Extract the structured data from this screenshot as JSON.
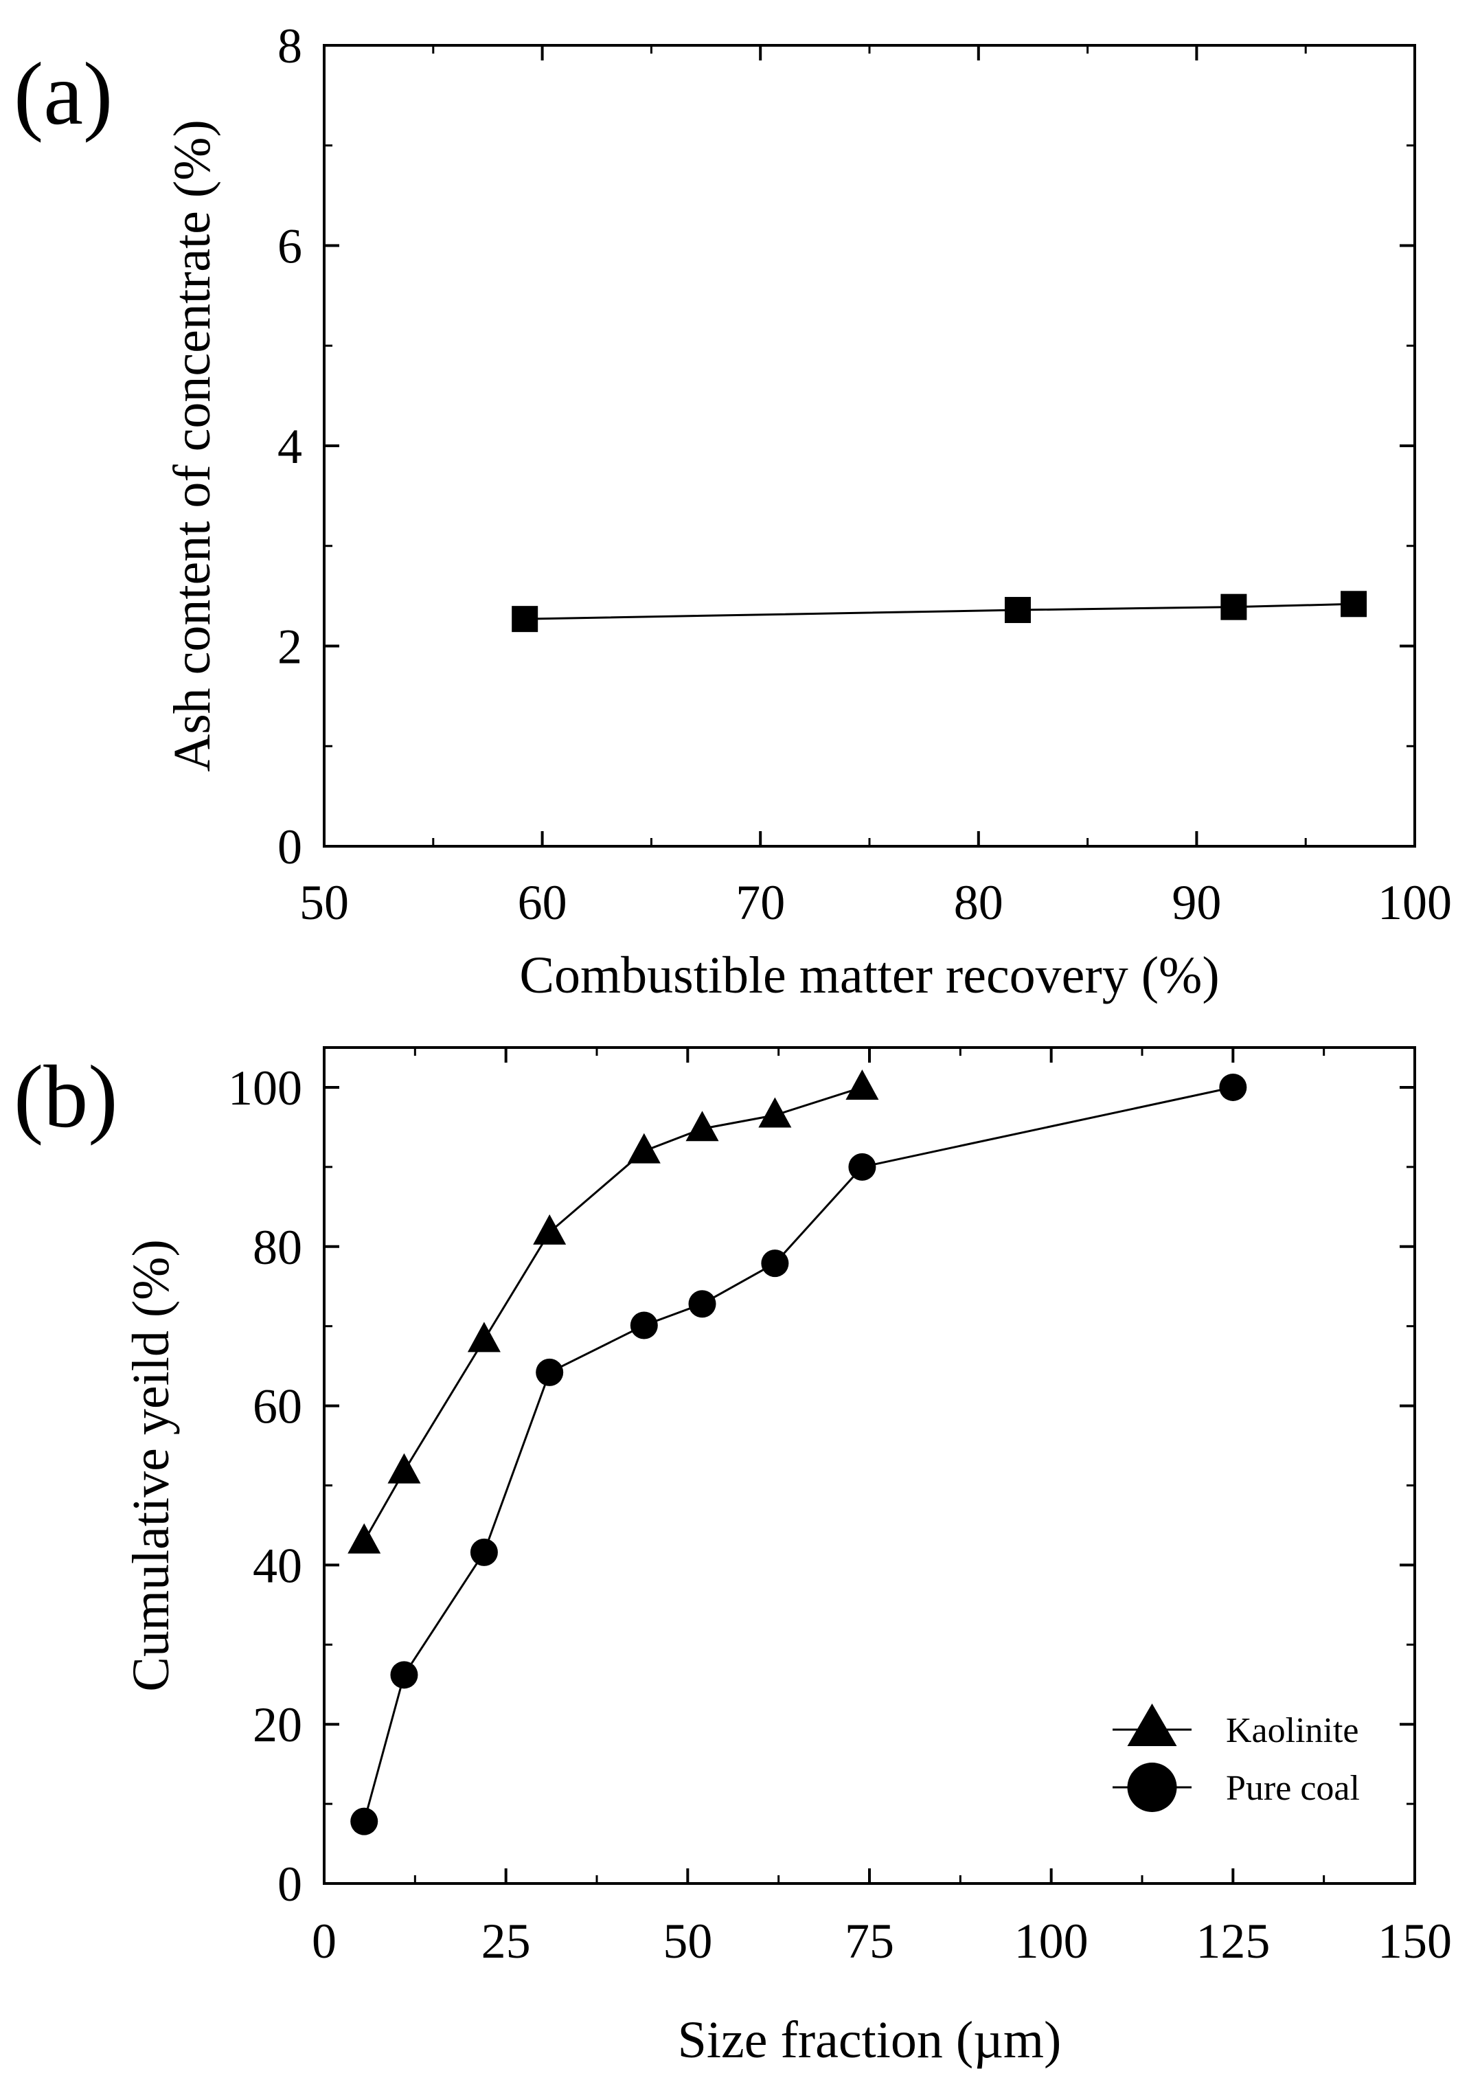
{
  "chart_data": [
    {
      "panel_label": "(a)",
      "type": "line",
      "xlabel": "Combustible matter recovery (%)",
      "ylabel": "Ash content of concentrate (%)",
      "xlim": [
        50,
        100
      ],
      "ylim": [
        0,
        8
      ],
      "xticks": [
        50,
        60,
        70,
        80,
        90,
        100
      ],
      "yticks": [
        0,
        2,
        4,
        6,
        8
      ],
      "grid": false,
      "series": [
        {
          "marker": "square",
          "x": [
            59.2,
            81.8,
            91.7,
            97.2
          ],
          "y": [
            2.27,
            2.36,
            2.39,
            2.42
          ]
        }
      ]
    },
    {
      "panel_label": "(b)",
      "type": "line",
      "xlabel": "Size fraction (µm)",
      "ylabel": "Cumulative yeild (%)",
      "xlim": [
        0,
        150
      ],
      "ylim": [
        0,
        105
      ],
      "xticks": [
        0,
        25,
        50,
        75,
        100,
        125,
        150
      ],
      "yticks": [
        0,
        20,
        40,
        60,
        80,
        100
      ],
      "grid": false,
      "legend_position": "bottom-right",
      "series": [
        {
          "name": "Kaolinite",
          "marker": "triangle",
          "x": [
            5.5,
            11,
            22,
            31,
            44,
            52,
            62,
            74
          ],
          "y": [
            43,
            51.8,
            68.3,
            81.8,
            92,
            94.8,
            96.5,
            100
          ]
        },
        {
          "name": "Pure coal",
          "marker": "circle",
          "x": [
            5.5,
            11,
            22,
            31,
            44,
            52,
            62,
            74,
            125
          ],
          "y": [
            7.8,
            26.2,
            41.6,
            64.2,
            70.1,
            72.8,
            77.9,
            90,
            100
          ]
        }
      ]
    }
  ]
}
